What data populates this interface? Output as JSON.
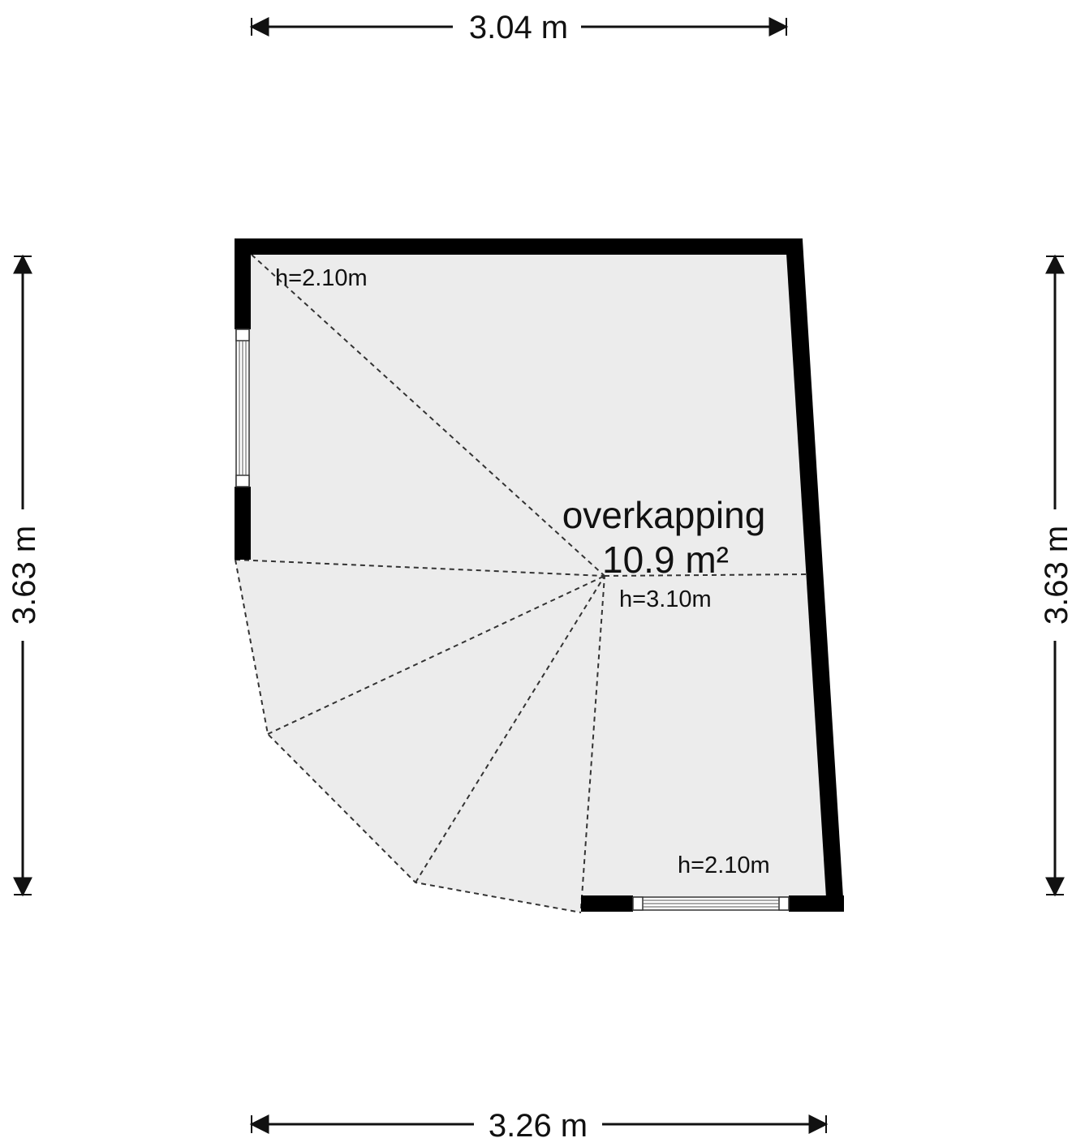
{
  "dimensions": {
    "top": "3.04 m",
    "bottom": "3.26 m",
    "left": "3.63 m",
    "right": "3.63 m"
  },
  "room": {
    "name": "overkapping",
    "area": "10.9 m²"
  },
  "heights": {
    "top_left": "h=2.10m",
    "center": "h=3.10m",
    "bottom_right": "h=2.10m"
  },
  "colors": {
    "floor": "#ececec",
    "wall": "#000000"
  }
}
